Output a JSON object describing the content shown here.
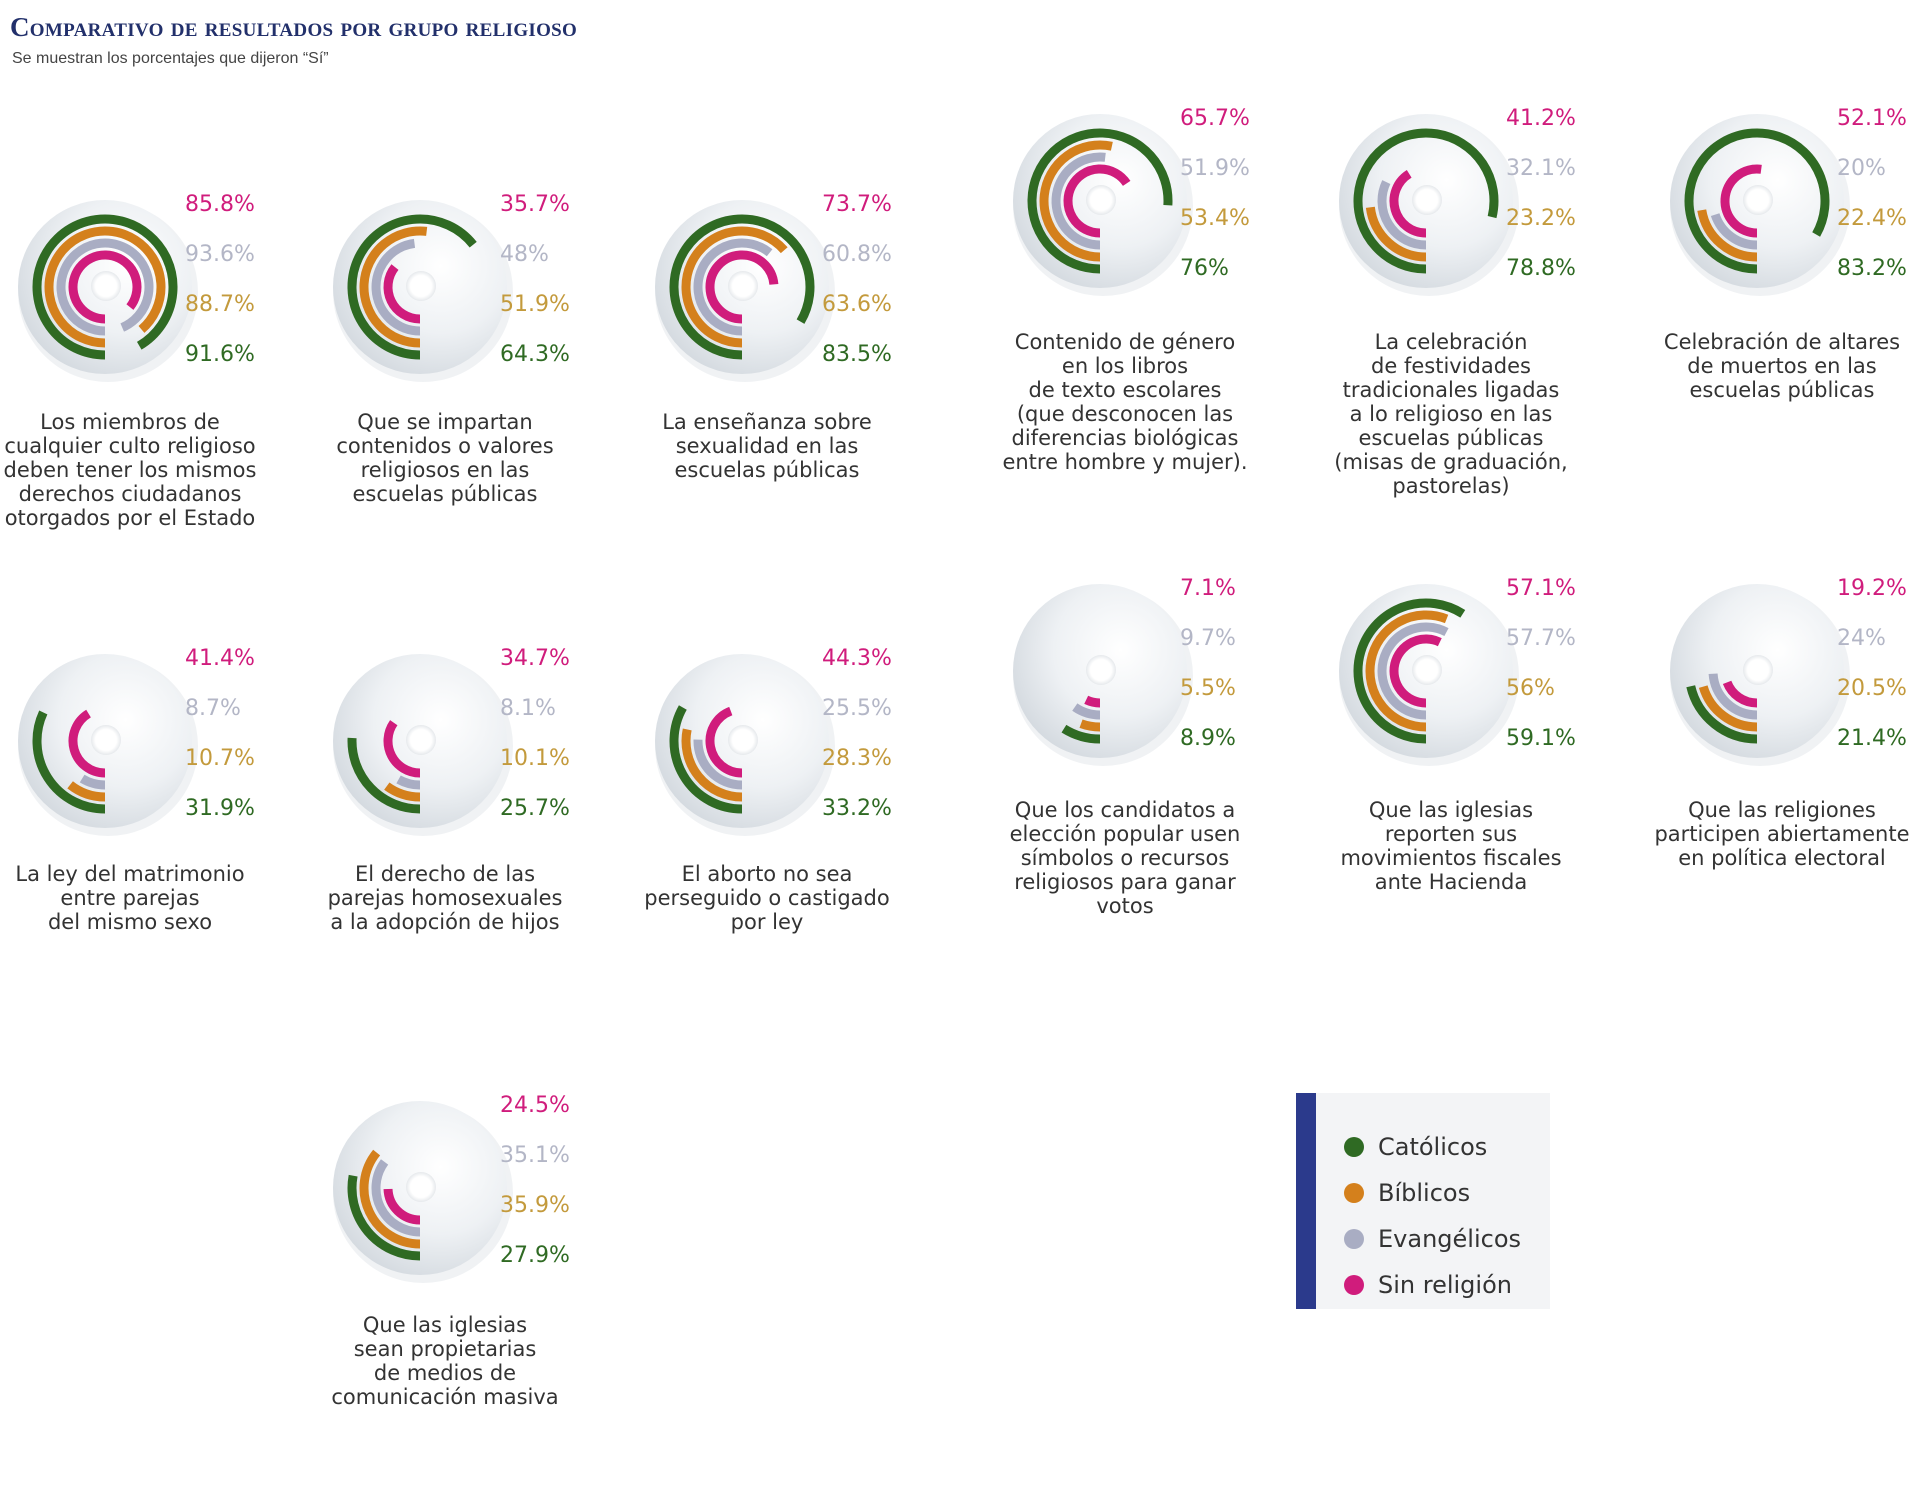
{
  "header": {
    "title": "Comparativo de resultados por grupo religioso",
    "subtitle": "Se muestran los porcentajes que dijeron “Sí”"
  },
  "colors": {
    "catolicos": "#2f6a23",
    "biblicos": "#d4801c",
    "evangelicos": "#a9adc3",
    "sin_religion": "#d01c7c",
    "evangelicos_text": "#b3b6c6",
    "biblicos_text": "#c39a3c",
    "legend_bar": "#2b3a8c"
  },
  "legend": {
    "items": [
      {
        "label": "Católicos",
        "color": "#2f6a23"
      },
      {
        "label": "Bíblicos",
        "color": "#d4801c"
      },
      {
        "label": "Evangélicos",
        "color": "#a9adc3"
      },
      {
        "label": "Sin religión",
        "color": "#d01c7c"
      }
    ]
  },
  "chart_data": [
    {
      "type": "radial-bar",
      "caption": "Los miembros de\ncualquier culto religioso\ndeben tener los mismos\nderechos ciudadanos\notorgados por el Estado",
      "labels": {
        "sin_religion": "85.8%",
        "evangelicos": "93.6%",
        "biblicos": "88.7%",
        "catolicos": "91.6%"
      },
      "values": {
        "sin_religion": 85.8,
        "evangelicos": 93.6,
        "biblicos": 88.7,
        "catolicos": 91.6
      }
    },
    {
      "type": "radial-bar",
      "caption": "Que se impartan\ncontenidos o valores\nreligiosos en las\nescuelas públicas",
      "labels": {
        "sin_religion": "35.7%",
        "evangelicos": "48%",
        "biblicos": "51.9%",
        "catolicos": "64.3%"
      },
      "values": {
        "sin_religion": 35.7,
        "evangelicos": 48,
        "biblicos": 51.9,
        "catolicos": 64.3
      }
    },
    {
      "type": "radial-bar",
      "caption": "La enseñanza sobre\nsexualidad en las\nescuelas públicas",
      "labels": {
        "sin_religion": "73.7%",
        "evangelicos": "60.8%",
        "biblicos": "63.6%",
        "catolicos": "83.5%"
      },
      "values": {
        "sin_religion": 73.7,
        "evangelicos": 60.8,
        "biblicos": 63.6,
        "catolicos": 83.5
      }
    },
    {
      "type": "radial-bar",
      "caption": "Contenido de género\nen los libros\nde texto escolares\n(que desconocen las\ndiferencias biológicas\nentre hombre y mujer).",
      "labels": {
        "sin_religion": "65.7%",
        "evangelicos": "51.9%",
        "biblicos": "53.4%",
        "catolicos": "76%"
      },
      "values": {
        "sin_religion": 65.7,
        "evangelicos": 51.9,
        "biblicos": 53.4,
        "catolicos": 76
      }
    },
    {
      "type": "radial-bar",
      "caption": "La celebración\nde festividades\ntradicionales ligadas\na lo religioso en las\nescuelas públicas\n(misas de graduación,\npastorelas)",
      "labels": {
        "sin_religion": "41.2%",
        "evangelicos": "32.1%",
        "biblicos": "23.2%",
        "catolicos": "78.8%"
      },
      "values": {
        "sin_religion": 41.2,
        "evangelicos": 32.1,
        "biblicos": 23.2,
        "catolicos": 78.8
      }
    },
    {
      "type": "radial-bar",
      "caption": "Celebración de altares\nde muertos en las\nescuelas públicas",
      "labels": {
        "sin_religion": "52.1%",
        "evangelicos": "20%",
        "biblicos": "22.4%",
        "catolicos": "83.2%"
      },
      "values": {
        "sin_religion": 52.1,
        "evangelicos": 20,
        "biblicos": 22.4,
        "catolicos": 83.2
      }
    },
    {
      "type": "radial-bar",
      "caption": "La ley del matrimonio\nentre parejas\ndel mismo sexo",
      "labels": {
        "sin_religion": "41.4%",
        "evangelicos": "8.7%",
        "biblicos": "10.7%",
        "catolicos": "31.9%"
      },
      "values": {
        "sin_religion": 41.4,
        "evangelicos": 8.7,
        "biblicos": 10.7,
        "catolicos": 31.9
      }
    },
    {
      "type": "radial-bar",
      "caption": "El derecho de las\nparejas homosexuales\na la adopción de hijos",
      "labels": {
        "sin_religion": "34.7%",
        "evangelicos": "8.1%",
        "biblicos": "10.1%",
        "catolicos": "25.7%"
      },
      "values": {
        "sin_religion": 34.7,
        "evangelicos": 8.1,
        "biblicos": 10.1,
        "catolicos": 25.7
      }
    },
    {
      "type": "radial-bar",
      "caption": "El aborto no sea\nperseguido o castigado\npor ley",
      "labels": {
        "sin_religion": "44.3%",
        "evangelicos": "25.5%",
        "biblicos": "28.3%",
        "catolicos": "33.2%"
      },
      "values": {
        "sin_religion": 44.3,
        "evangelicos": 25.5,
        "biblicos": 28.3,
        "catolicos": 33.2
      }
    },
    {
      "type": "radial-bar",
      "caption": "Que los candidatos a\nelección popular usen\nsímbolos o recursos\nreligiosos para ganar\nvotos",
      "labels": {
        "sin_religion": "7.1%",
        "evangelicos": "9.7%",
        "biblicos": "5.5%",
        "catolicos": "8.9%"
      },
      "values": {
        "sin_religion": 7.1,
        "evangelicos": 9.7,
        "biblicos": 5.5,
        "catolicos": 8.9
      }
    },
    {
      "type": "radial-bar",
      "caption": "Que las iglesias\nreporten sus\nmovimientos fiscales\nante Hacienda",
      "labels": {
        "sin_religion": "57.1%",
        "evangelicos": "57.7%",
        "biblicos": "56%",
        "catolicos": "59.1%"
      },
      "values": {
        "sin_religion": 57.1,
        "evangelicos": 57.7,
        "biblicos": 56,
        "catolicos": 59.1
      }
    },
    {
      "type": "radial-bar",
      "caption": "Que las religiones\nparticipen abiertamente\nen política electoral",
      "labels": {
        "sin_religion": "19.2%",
        "evangelicos": "24%",
        "biblicos": "20.5%",
        "catolicos": "21.4%"
      },
      "values": {
        "sin_religion": 19.2,
        "evangelicos": 24,
        "biblicos": 20.5,
        "catolicos": 21.4
      }
    },
    {
      "type": "radial-bar",
      "caption": "Que las iglesias\nsean propietarias\nde medios de\ncomunicación masiva",
      "labels": {
        "sin_religion": "24.5%",
        "evangelicos": "35.1%",
        "biblicos": "35.9%",
        "catolicos": "27.9%"
      },
      "values": {
        "sin_religion": 24.5,
        "evangelicos": 35.1,
        "biblicos": 35.9,
        "catolicos": 27.9
      }
    }
  ]
}
